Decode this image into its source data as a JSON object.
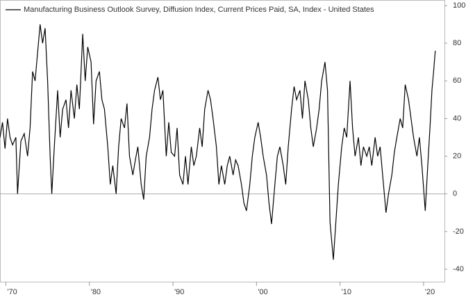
{
  "chart_data": {
    "type": "line",
    "legend": "Manufacturing Business Outlook Survey, Diffusion Index, Current Prices Paid, SA, Index - United States",
    "x": [
      1969.3,
      1969.6,
      1969.9,
      1970.2,
      1970.5,
      1970.8,
      1971.2,
      1971.4,
      1971.8,
      1972.2,
      1972.6,
      1972.9,
      1973.2,
      1973.5,
      1973.8,
      1974.1,
      1974.4,
      1974.7,
      1975.0,
      1975.3,
      1975.5,
      1975.8,
      1976.2,
      1976.5,
      1976.8,
      1977.2,
      1977.5,
      1977.8,
      1978.2,
      1978.5,
      1978.8,
      1979.2,
      1979.5,
      1979.8,
      1980.2,
      1980.5,
      1980.8,
      1981.2,
      1981.5,
      1981.8,
      1982.2,
      1982.5,
      1982.8,
      1983.2,
      1983.5,
      1983.8,
      1984.2,
      1984.5,
      1984.8,
      1985.2,
      1985.5,
      1985.8,
      1986.2,
      1986.5,
      1986.8,
      1987.2,
      1987.5,
      1987.8,
      1988.2,
      1988.5,
      1988.8,
      1989.2,
      1989.5,
      1989.8,
      1990.2,
      1990.5,
      1990.8,
      1991.2,
      1991.5,
      1991.8,
      1992.2,
      1992.5,
      1992.8,
      1993.2,
      1993.5,
      1993.8,
      1994.2,
      1994.5,
      1994.8,
      1995.2,
      1995.5,
      1995.8,
      1996.2,
      1996.5,
      1996.8,
      1997.2,
      1997.5,
      1997.8,
      1998.2,
      1998.5,
      1998.8,
      1999.2,
      1999.5,
      1999.8,
      2000.2,
      2000.5,
      2000.8,
      2001.2,
      2001.5,
      2001.8,
      2002.2,
      2002.5,
      2002.8,
      2003.2,
      2003.5,
      2003.8,
      2004.2,
      2004.5,
      2004.8,
      2005.2,
      2005.5,
      2005.8,
      2006.2,
      2006.5,
      2006.8,
      2007.2,
      2007.5,
      2007.8,
      2008.2,
      2008.5,
      2008.8,
      2009.2,
      2009.5,
      2009.8,
      2010.2,
      2010.5,
      2010.8,
      2011.2,
      2011.5,
      2011.8,
      2012.2,
      2012.5,
      2012.8,
      2013.2,
      2013.5,
      2013.8,
      2014.2,
      2014.5,
      2014.8,
      2015.2,
      2015.5,
      2015.8,
      2016.2,
      2016.5,
      2016.8,
      2017.2,
      2017.5,
      2017.8,
      2018.2,
      2018.5,
      2018.8,
      2019.2,
      2019.5,
      2019.8,
      2020.2,
      2020.5,
      2020.8,
      2021.0,
      2021.2,
      2021.4
    ],
    "values": [
      30,
      38,
      24,
      40,
      30,
      26,
      30,
      0,
      28,
      32,
      20,
      35,
      65,
      60,
      75,
      90,
      80,
      88,
      60,
      20,
      0,
      25,
      55,
      30,
      45,
      50,
      35,
      55,
      40,
      58,
      45,
      85,
      60,
      78,
      70,
      37,
      60,
      65,
      50,
      45,
      25,
      5,
      15,
      0,
      25,
      40,
      35,
      48,
      20,
      10,
      18,
      25,
      5,
      -3,
      20,
      30,
      45,
      55,
      62,
      50,
      55,
      20,
      38,
      22,
      20,
      35,
      10,
      5,
      20,
      5,
      25,
      15,
      20,
      35,
      25,
      45,
      55,
      50,
      40,
      25,
      5,
      15,
      5,
      15,
      20,
      10,
      18,
      15,
      5,
      -5,
      -9,
      5,
      20,
      30,
      38,
      30,
      20,
      10,
      -5,
      -16,
      5,
      20,
      25,
      15,
      5,
      25,
      45,
      57,
      50,
      55,
      40,
      60,
      50,
      35,
      25,
      35,
      45,
      60,
      70,
      55,
      -15,
      -35,
      -15,
      5,
      25,
      35,
      30,
      60,
      35,
      20,
      30,
      15,
      25,
      20,
      25,
      15,
      30,
      20,
      25,
      5,
      -10,
      0,
      10,
      22,
      30,
      40,
      35,
      58,
      50,
      40,
      30,
      20,
      30,
      15,
      -9,
      15,
      38,
      55,
      65,
      76
    ],
    "color": "#000000",
    "xlim": [
      1969.3,
      2022.5
    ],
    "ylim": [
      -40,
      100
    ],
    "xticks": [
      {
        "value": 1970,
        "label": "'70"
      },
      {
        "value": 1980,
        "label": "'80"
      },
      {
        "value": 1990,
        "label": "'90"
      },
      {
        "value": 2000,
        "label": "'00"
      },
      {
        "value": 2010,
        "label": "'10"
      },
      {
        "value": 2020,
        "label": "'20"
      }
    ],
    "yticks": [
      -40,
      -20,
      0,
      20,
      40,
      60,
      80,
      100
    ]
  }
}
